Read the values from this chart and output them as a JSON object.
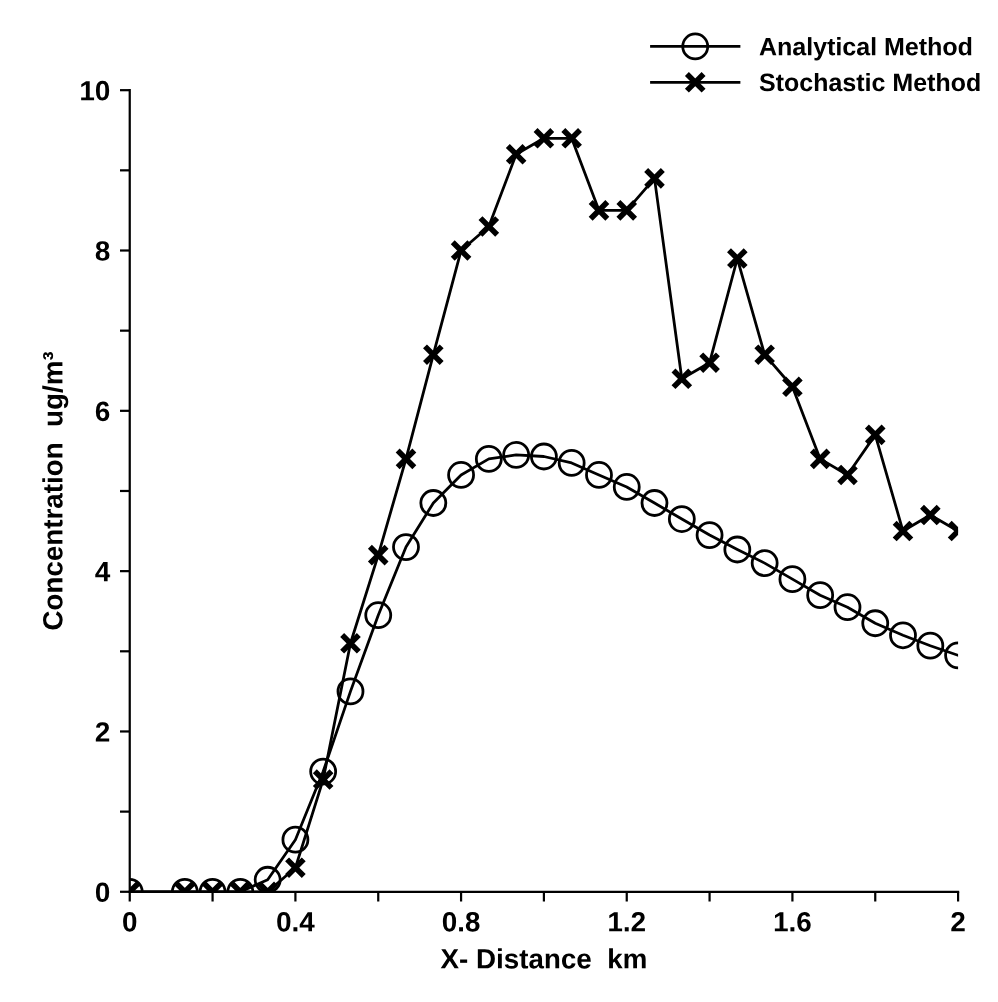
{
  "chart_data": {
    "type": "line",
    "xlabel": "X- Distance  km",
    "ylabel": "Concentration  ug/m³",
    "x": [
      0,
      0.133,
      0.2,
      0.267,
      0.333,
      0.4,
      0.467,
      0.533,
      0.6,
      0.667,
      0.733,
      0.8,
      0.867,
      0.933,
      1.0,
      1.067,
      1.133,
      1.2,
      1.267,
      1.333,
      1.4,
      1.467,
      1.533,
      1.6,
      1.667,
      1.733,
      1.8,
      1.867,
      1.933,
      2.0
    ],
    "series": [
      {
        "name": "Analytical Method",
        "color": "#000000",
        "marker": "circle",
        "values": [
          0,
          0,
          0,
          0,
          0.15,
          0.65,
          1.5,
          2.5,
          3.45,
          4.3,
          4.85,
          5.2,
          5.4,
          5.45,
          5.43,
          5.35,
          5.2,
          5.05,
          4.85,
          4.65,
          4.45,
          4.27,
          4.1,
          3.9,
          3.7,
          3.55,
          3.35,
          3.2,
          3.07,
          2.95
        ]
      },
      {
        "name": "Stochastic Method",
        "color": "#000000",
        "marker": "cross",
        "values": [
          0,
          0,
          0,
          0,
          0,
          0.3,
          1.4,
          3.1,
          4.2,
          5.4,
          6.7,
          8.0,
          8.3,
          9.2,
          9.4,
          9.4,
          8.5,
          8.5,
          8.9,
          6.4,
          6.6,
          7.9,
          6.7,
          6.3,
          5.4,
          5.2,
          5.7,
          4.5,
          4.7,
          4.5
        ]
      }
    ],
    "xlim": [
      0,
      2
    ],
    "ylim": [
      0,
      10
    ],
    "xticks": [
      0,
      {
        "value": 0.2,
        "label": null
      },
      0.4,
      {
        "value": 0.6,
        "label": null
      },
      0.8,
      {
        "value": 1.0,
        "label": null
      },
      1.2,
      {
        "value": 1.4,
        "label": null
      },
      1.6,
      {
        "value": 1.8,
        "label": null
      },
      2
    ],
    "yticks": [
      0,
      {
        "value": 1,
        "label": null
      },
      2,
      {
        "value": 3,
        "label": null
      },
      4,
      {
        "value": 5,
        "label": null
      },
      6,
      {
        "value": 7,
        "label": null
      },
      8,
      {
        "value": 9,
        "label": null
      },
      10
    ],
    "grid": false,
    "legend": "top right",
    "line_style": "solid"
  }
}
